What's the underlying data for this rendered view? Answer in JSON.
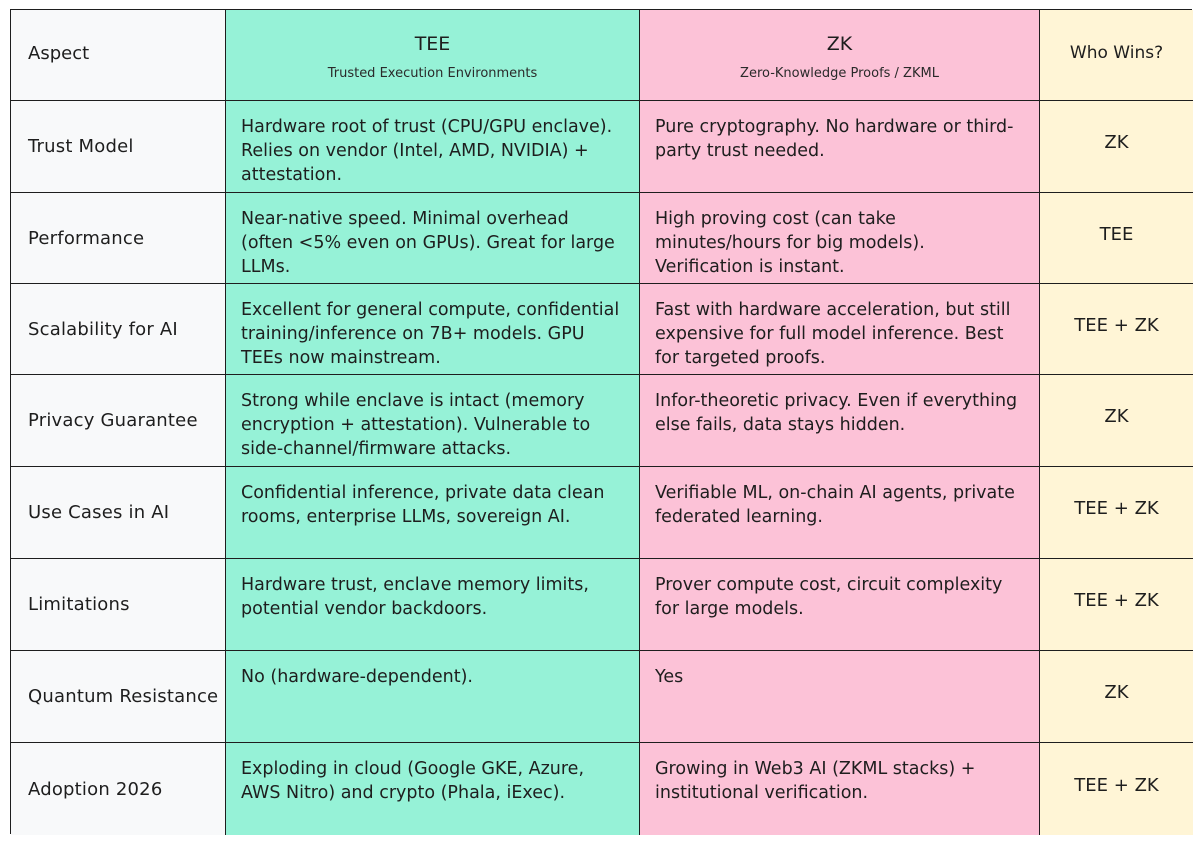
{
  "header": {
    "aspect": "Aspect",
    "tee_title": "TEE",
    "tee_subtitle": "Trusted Execution Environments",
    "zk_title": "ZK",
    "zk_subtitle": "Zero-Knowledge Proofs / ZKML",
    "winner": "Who Wins?"
  },
  "rows": [
    {
      "aspect": "Trust Model",
      "tee": "Hardware root of trust (CPU/GPU enclave). Relies on vendor (Intel, AMD, NVIDIA) + attestation.",
      "zk": "Pure cryptography. No hardware or third-party trust needed.",
      "winner": "ZK"
    },
    {
      "aspect": "Performance",
      "tee": "Near-native speed. Minimal overhead (often <5% even on GPUs). Great for large LLMs.",
      "zk": "High proving cost (can take minutes/hours for big models). Verification is instant.",
      "winner": "TEE"
    },
    {
      "aspect": "Scalability for AI",
      "tee": "Excellent for general compute, confidential training/inference on 7B+ models. GPU TEEs now mainstream.",
      "zk": "Fast with hardware acceleration, but still expensive for full model inference. Best for targeted proofs.",
      "winner": "TEE + ZK"
    },
    {
      "aspect": "Privacy Guarantee",
      "tee": "Strong while enclave is intact (memory encryption + attestation). Vulnerable to side-channel/firmware attacks.",
      "zk": "Infor-theoretic privacy. Even if everything else fails, data stays hidden.",
      "winner": "ZK"
    },
    {
      "aspect": "Use Cases in AI",
      "tee": "Confidential inference, private data clean rooms, enterprise LLMs, sovereign AI.",
      "zk": "Verifiable ML, on-chain AI agents, private federated learning.",
      "winner": "TEE + ZK"
    },
    {
      "aspect": "Limitations",
      "tee": "Hardware trust, enclave memory limits, potential vendor backdoors.",
      "zk": "Prover compute cost, circuit complexity for large models.",
      "winner": "TEE + ZK"
    },
    {
      "aspect": "Quantum Resistance",
      "tee": "No (hardware-dependent).",
      "zk": "Yes",
      "winner": "ZK"
    },
    {
      "aspect": "Adoption 2026",
      "tee": "Exploding in cloud (Google GKE, Azure, AWS Nitro) and crypto (Phala, iExec).",
      "zk": "Growing in Web3 AI (ZKML stacks) + institutional verification.",
      "winner": "TEE + ZK"
    }
  ],
  "colors": {
    "aspect_bg": "#f8f9fa",
    "tee_bg": "#96f2d7",
    "zk_bg": "#fcc2d7",
    "winner_bg": "#fff5d6",
    "border": "#1e1e1e"
  }
}
